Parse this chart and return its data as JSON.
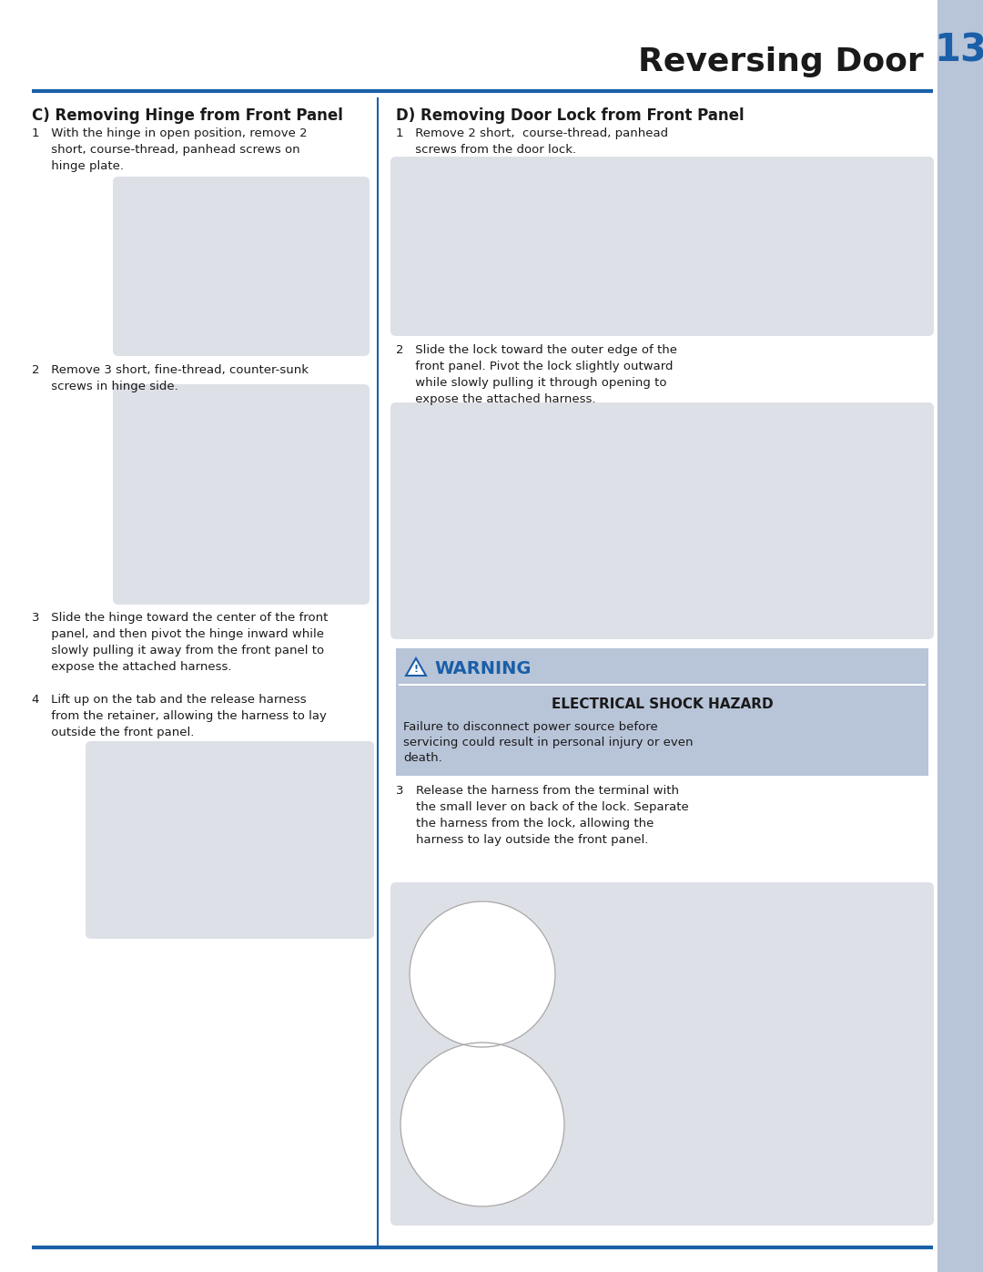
{
  "page_title": "Reversing Door",
  "page_number": "13",
  "title_font_size": 26,
  "page_num_font_size": 30,
  "header_bar_color": "#b8c4d8",
  "divider_color": "#1a5fa8",
  "image_box_color": "#dde0e6",
  "warning_bg": "#b8c4d8",
  "warning_title_color": "#1a5fa8",
  "bg_color": "#ffffff",
  "text_color": "#1a1a1a",
  "section_c_title": "C) Removing Hinge from Front Panel",
  "section_d_title": "D) Removing Door Lock from Front Panel",
  "step_c1": "1   With the hinge in open position, remove 2\n     short, course-thread, panhead screws on\n     hinge plate.",
  "step_c2": "2   Remove 3 short, fine-thread, counter-sunk\n     screws in hinge side.",
  "step_c3": "3   Slide the hinge toward the center of the front\n     panel, and then pivot the hinge inward while\n     slowly pulling it away from the front panel to\n     expose the attached harness.",
  "step_c4": "4   Lift up on the tab and the release harness\n     from the retainer, allowing the harness to lay\n     outside the front panel.",
  "step_d1": "1   Remove 2 short,  course-thread, panhead\n     screws from the door lock.",
  "step_d2": "2   Slide the lock toward the outer edge of the\n     front panel. Pivot the lock slightly outward\n     while slowly pulling it through opening to\n     expose the attached harness.",
  "step_d3_num": "3",
  "step_d3": "Release the harness from the terminal with\nthe small lever on back of the lock. Separate\nthe harness from the lock, allowing the\nharness to lay outside the front panel.",
  "warning_line1": "WARNING",
  "warning_line2": "ELECTRICAL SHOCK HAZARD",
  "warning_line3": "Failure to disconnect power source before\nservicing could result in personal injury or even\ndeath.",
  "section_title_fs": 12,
  "step_fs": 9.5,
  "warn_title_fs": 14,
  "warn_sub_fs": 11,
  "warn_body_fs": 9.5
}
